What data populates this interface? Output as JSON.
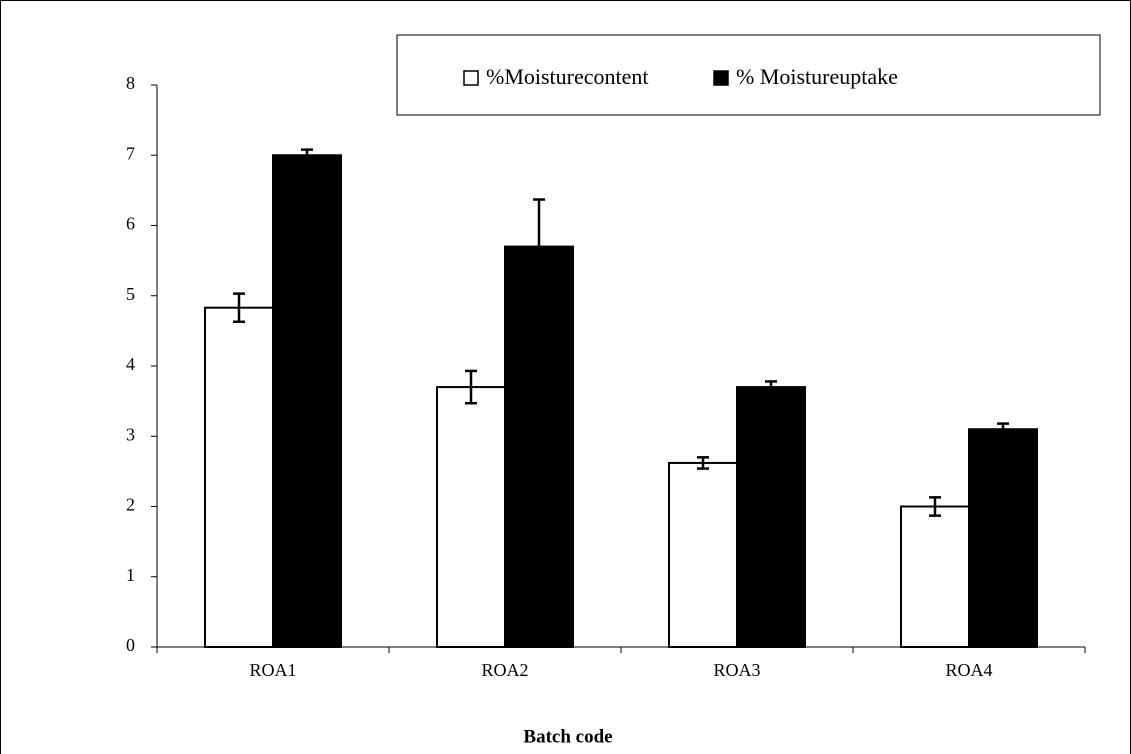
{
  "chart_data": {
    "type": "bar",
    "x_label": "Batch code",
    "categories": [
      "ROA1",
      "ROA2",
      "ROA3",
      "ROA4"
    ],
    "series": [
      {
        "name": "%Moisturecontent",
        "color": "#ffffff",
        "values": [
          4.83,
          3.7,
          2.62,
          2.0
        ],
        "errors": [
          0.2,
          0.23,
          0.08,
          0.13
        ]
      },
      {
        "name": "% Moistureuptake",
        "color": "#000000",
        "values": [
          7.0,
          5.7,
          3.7,
          3.1
        ],
        "errors": [
          0.08,
          0.67,
          0.08,
          0.08
        ]
      }
    ],
    "ylim": [
      0,
      8
    ],
    "yticks": [
      0,
      1,
      2,
      3,
      4,
      5,
      6,
      7,
      8
    ],
    "grid": false,
    "legend": "top-right"
  }
}
